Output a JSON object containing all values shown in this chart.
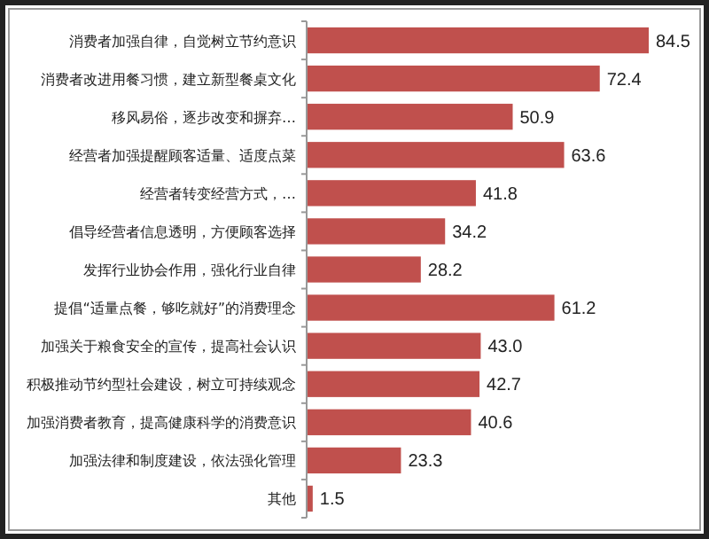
{
  "chart_data": {
    "type": "bar",
    "orientation": "horizontal",
    "categories": [
      "消费者加强自律，自觉树立节约意识",
      "消费者改进用餐习惯，建立新型餐桌文化",
      "移风易俗，逐步改变和摒弃…",
      "经营者加强提醒顾客适量、适度点菜",
      "经营者转变经营方式，…",
      "倡导经营者信息透明，方便顾客选择",
      "发挥行业协会作用，强化行业自律",
      "提倡“适量点餐，够吃就好”的消费理念",
      "加强关于粮食安全的宣传，提高社会认识",
      "积极推动节约型社会建设，树立可持续观念",
      "加强消费者教育，提高健康科学的消费意识",
      "加强法律和制度建设，依法强化管理",
      "其他"
    ],
    "values": [
      84.5,
      72.4,
      50.9,
      63.6,
      41.8,
      34.2,
      28.2,
      61.2,
      43.0,
      42.7,
      40.6,
      23.3,
      1.5
    ],
    "value_labels": [
      "84.5",
      "72.4",
      "50.9",
      "63.6",
      "41.8",
      "34.2",
      "28.2",
      "61.2",
      "43.0",
      "42.7",
      "40.6",
      "23.3",
      "1.5"
    ],
    "color": "#c0504d"
  }
}
